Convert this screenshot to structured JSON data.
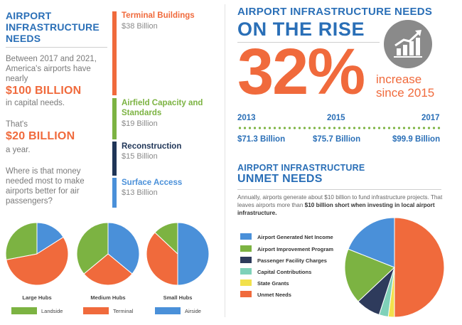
{
  "intro": {
    "title": "AIRPORT INFRASTRUCTURE NEEDS",
    "p1": "Between 2017 and 2021, America's airports have nearly",
    "big1": "$100 BILLION",
    "p2": "in capital needs.",
    "p3": "That's",
    "big2": "$20 BILLION",
    "p4": "a year.",
    "question": "Where is that money needed most to make airports better for air passengers?"
  },
  "categories": [
    {
      "label": "Terminal Buildings",
      "value": "$38 Billion",
      "amount": 38,
      "color": "#f06a3c"
    },
    {
      "label": "Airfield Capacity and Standards",
      "value": "$19 Billion",
      "amount": 19,
      "color": "#7cb342"
    },
    {
      "label": "Reconstruction",
      "value": "$15 Billion",
      "amount": 15,
      "color": "#1f3557"
    },
    {
      "label": "Surface Access",
      "value": "$13 Billion",
      "amount": 13,
      "color": "#4a90d9"
    }
  ],
  "hubs_legend": [
    {
      "label": "Landside",
      "color": "#7cb342"
    },
    {
      "label": "Terminal",
      "color": "#f06a3c"
    },
    {
      "label": "Airside",
      "color": "#4a90d9"
    }
  ],
  "rise": {
    "title1": "AIRPORT INFRASTRUCTURE NEEDS",
    "title2": "ON THE RISE",
    "percent": "32%",
    "increase1": "increase",
    "increase2": "since 2015",
    "icon": "growth-chart-icon",
    "points": [
      {
        "year": "2013",
        "value": "$71.3 Billion"
      },
      {
        "year": "2015",
        "value": "$75.7 Billion"
      },
      {
        "year": "2017",
        "value": "$99.9 Billion"
      }
    ]
  },
  "unmet": {
    "title1": "AIRPORT INFRASTRUCTURE",
    "title2": "UNMET NEEDS",
    "text_a": "Annually, airports generate about $10 billion to fund infrastructure projects. That leaves airports more than ",
    "text_bold": "$10 billion short when investing in local airport infrastructure."
  },
  "chart_data": [
    {
      "type": "pie",
      "title": "Large Hubs",
      "labels": [
        "Airside",
        "Terminal",
        "Landside"
      ],
      "values": [
        16,
        56,
        28
      ],
      "colors": [
        "#4a90d9",
        "#f06a3c",
        "#7cb342"
      ]
    },
    {
      "type": "pie",
      "title": "Medium Hubs",
      "labels": [
        "Airside",
        "Terminal",
        "Landside"
      ],
      "values": [
        36,
        28,
        36
      ],
      "colors": [
        "#4a90d9",
        "#f06a3c",
        "#7cb342"
      ]
    },
    {
      "type": "pie",
      "title": "Small Hubs",
      "labels": [
        "Airside",
        "Terminal",
        "Landside"
      ],
      "values": [
        50,
        37,
        13
      ],
      "colors": [
        "#4a90d9",
        "#f06a3c",
        "#7cb342"
      ]
    },
    {
      "type": "pie",
      "title": "",
      "labels": [
        "Unmet Needs",
        "State Grants",
        "Capital Contributions",
        "Passenger Facility Charges",
        "Airport Improvement Program",
        "Airport Generated Net Income"
      ],
      "values": [
        50,
        2,
        3,
        8,
        18,
        19
      ],
      "colors": [
        "#f06a3c",
        "#f2e14c",
        "#7fd1b9",
        "#2e3b5c",
        "#7cb342",
        "#4a90d9"
      ]
    }
  ]
}
